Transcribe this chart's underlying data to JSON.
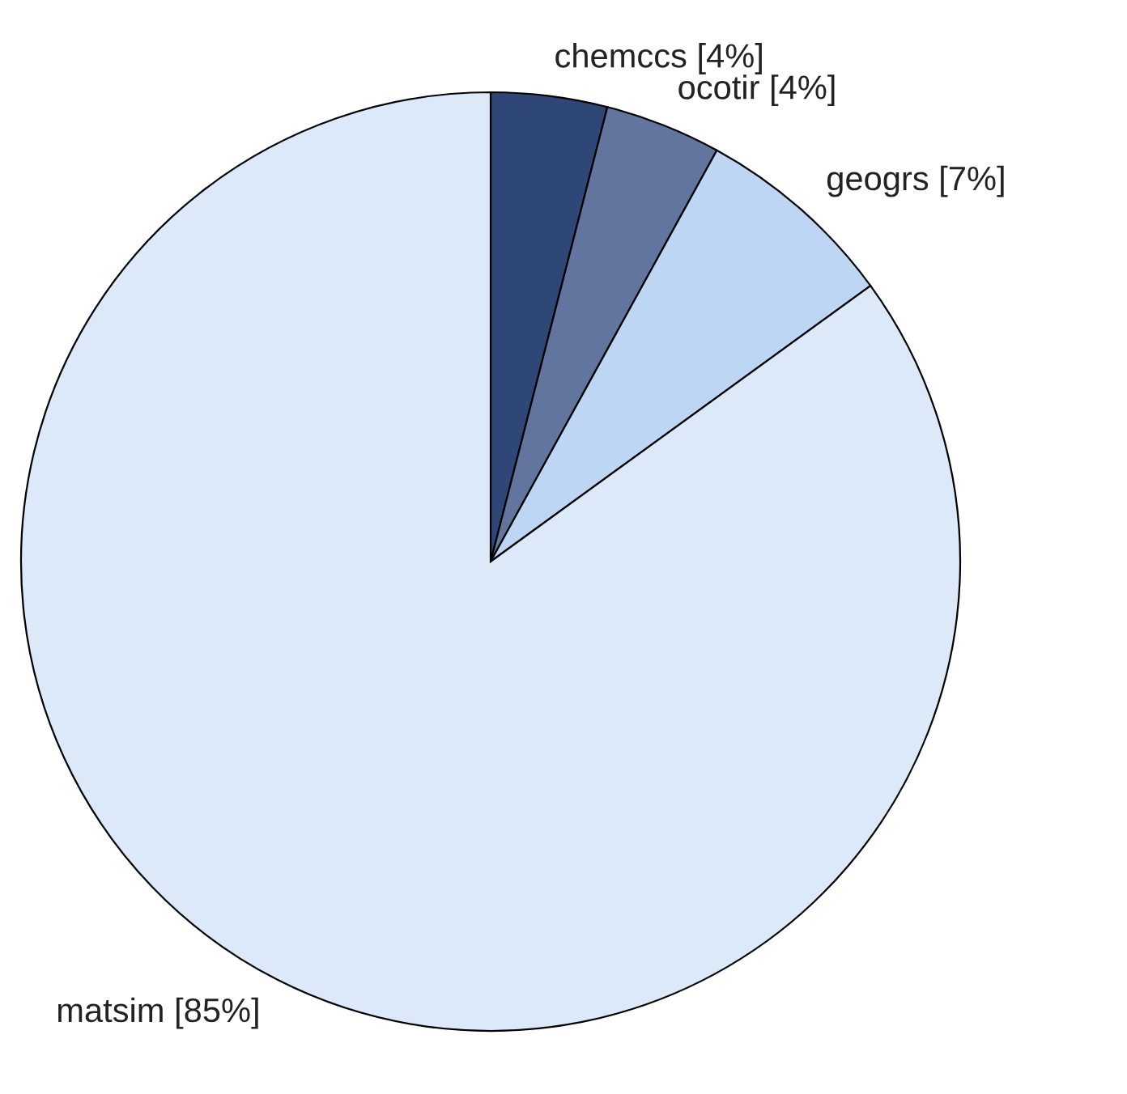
{
  "chart_data": {
    "type": "pie",
    "categories": [
      "chemccs [4%]",
      "ocotir [4%]",
      "geogrs [7%]",
      "matsim [85%]"
    ],
    "values": [
      4,
      4,
      7,
      85
    ],
    "colors": [
      "#2e4777",
      "#62759e",
      "#bcd6f3",
      "#dce9f9"
    ]
  }
}
